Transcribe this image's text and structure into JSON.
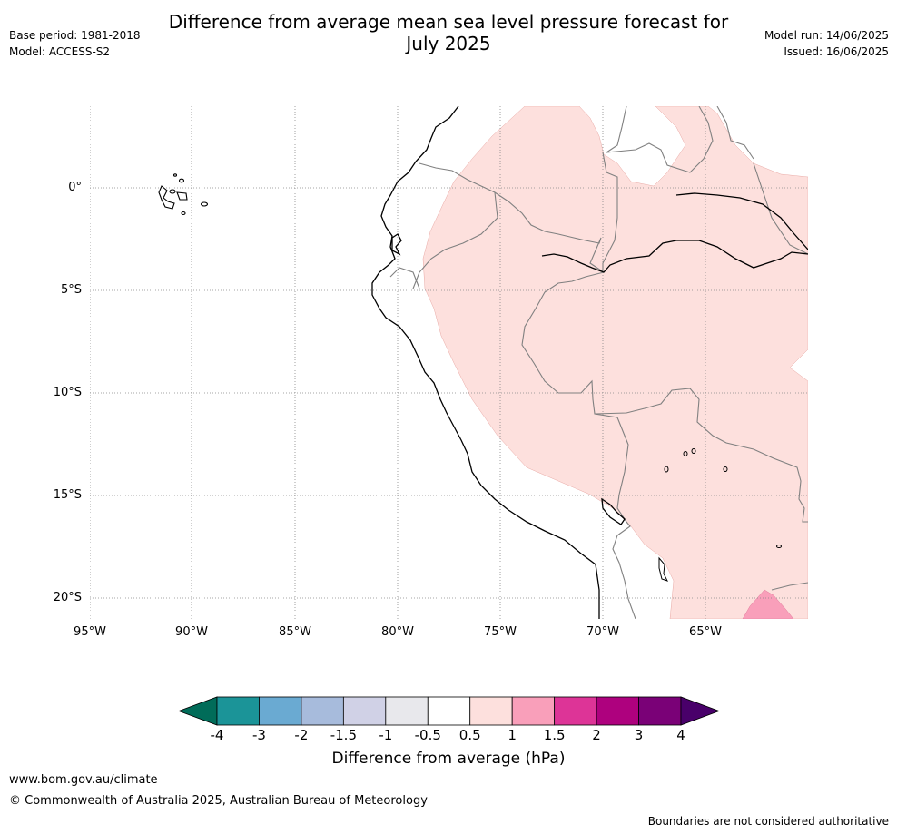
{
  "header": {
    "title_line1": "Difference from average mean sea level pressure forecast for",
    "title_line2": "July 2025",
    "base_period": "Base period: 1981-2018",
    "model": "Model: ACCESS-S2",
    "model_run": "Model run: 14/06/2025",
    "issued": "Issued: 16/06/2025"
  },
  "map": {
    "lat_labels": [
      "0°",
      "5°S",
      "10°S",
      "15°S",
      "20°S"
    ],
    "lon_labels": [
      "95°W",
      "90°W",
      "85°W",
      "80°W",
      "75°W",
      "70°W",
      "65°W"
    ],
    "fill_colors": {
      "anomaly_0_5_to_1": "#fde0dd",
      "anomaly_1_to_1_5": "#f99fba"
    }
  },
  "colorbar": {
    "title": "Difference from average (hPa)",
    "ticks": [
      "-4",
      "-3",
      "-2",
      "-1.5",
      "-1",
      "-0.5",
      "0.5",
      "1",
      "1.5",
      "2",
      "3",
      "4"
    ],
    "colors": [
      "#016c59",
      "#1b9498",
      "#6aaad2",
      "#a7bbdc",
      "#d0d1e6",
      "#e8e8ec",
      "#ffffff",
      "#fde0dd",
      "#f99fba",
      "#dd3497",
      "#ae017e",
      "#7a0177",
      "#49006a"
    ]
  },
  "footer": {
    "url": "www.bom.gov.au/climate",
    "copyright": "© Commonwealth of Australia 2025, Australian Bureau of Meteorology",
    "disclaimer": "Boundaries are not considered authoritative"
  }
}
